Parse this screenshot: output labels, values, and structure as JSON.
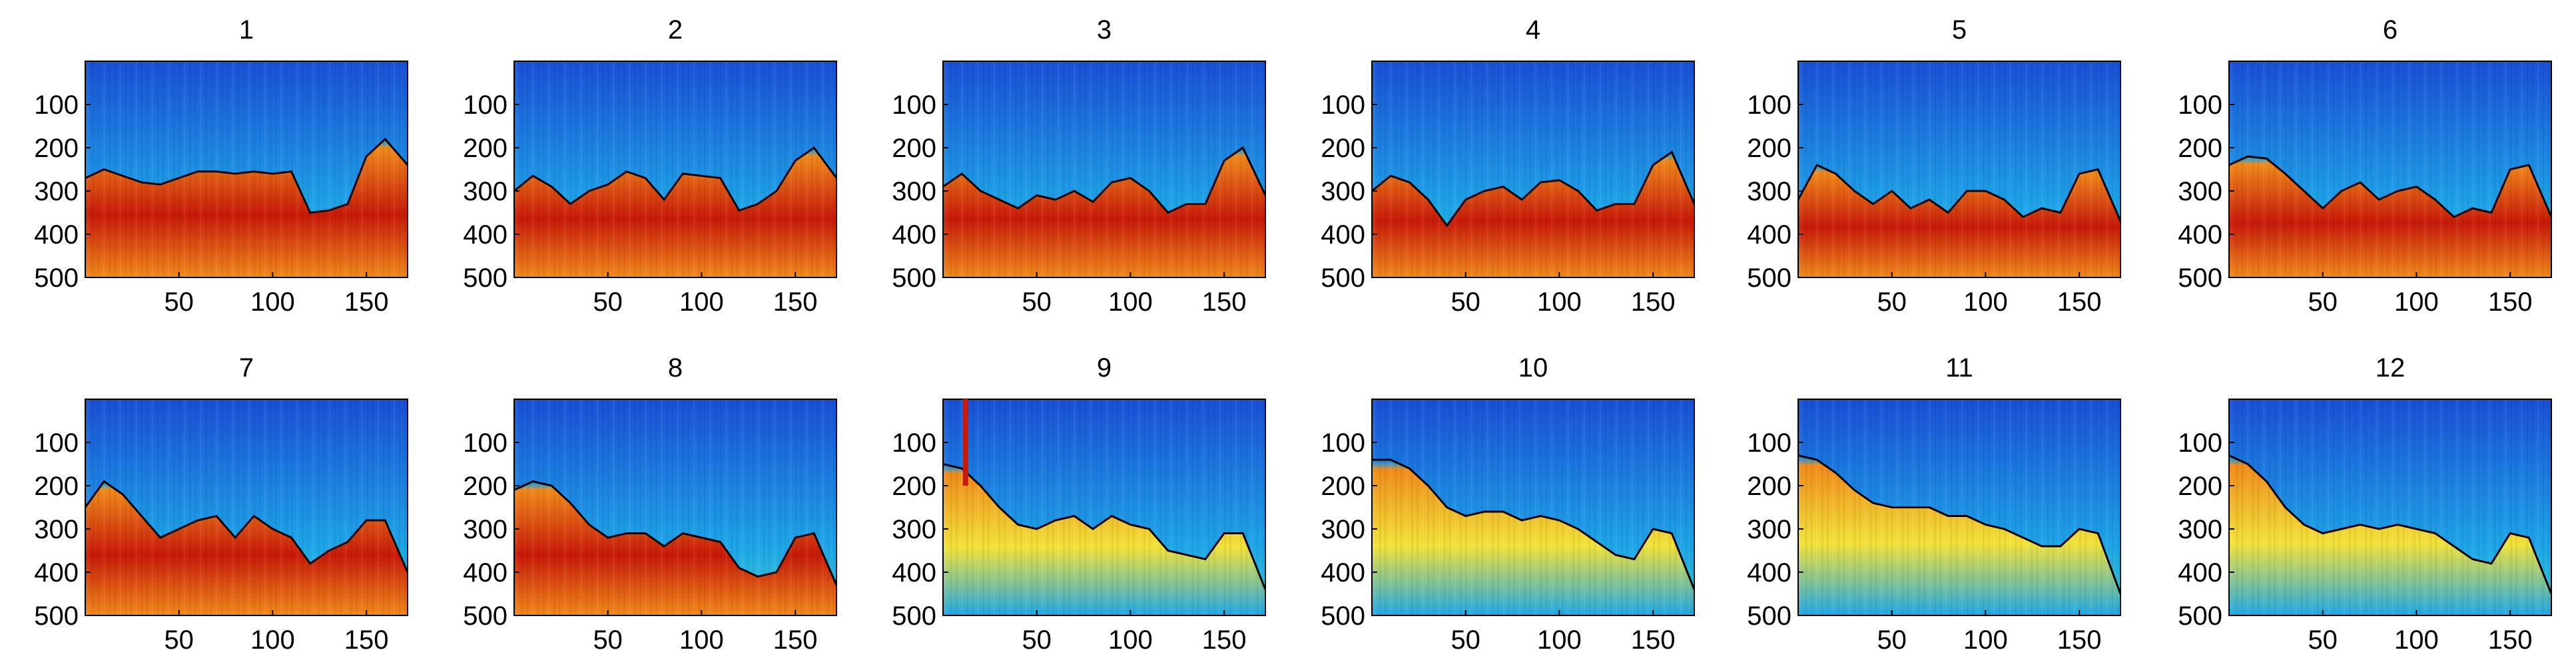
{
  "chart_data": {
    "type": "heatmap",
    "layout": "2 rows x 6 columns of small-multiple panels",
    "colormap": "jet",
    "colors": {
      "low": "#1a4fd6",
      "mid_low": "#1fa8e8",
      "mid": "#3fd0c8",
      "mid_high": "#f2e23a",
      "high": "#f08a1c",
      "peak": "#c81a0a",
      "boundary_line": "#000000"
    },
    "grid": false,
    "y_axis": {
      "reversed": true,
      "lim": [
        0,
        500
      ],
      "ticks": [
        100,
        200,
        300,
        400,
        500
      ]
    },
    "x_axis": {
      "lim": [
        0,
        172
      ],
      "ticks": [
        50,
        100,
        150
      ]
    },
    "boundary_x": [
      0,
      10,
      20,
      30,
      40,
      50,
      60,
      70,
      80,
      90,
      100,
      110,
      120,
      130,
      140,
      150,
      160,
      172
    ],
    "panels": [
      {
        "title": "1",
        "boundary_y": [
          270,
          250,
          265,
          280,
          285,
          270,
          255,
          255,
          260,
          255,
          260,
          255,
          350,
          345,
          330,
          220,
          180,
          240
        ]
      },
      {
        "title": "2",
        "boundary_y": [
          300,
          265,
          290,
          330,
          300,
          285,
          255,
          270,
          320,
          260,
          265,
          270,
          345,
          330,
          300,
          230,
          200,
          270
        ]
      },
      {
        "title": "3",
        "boundary_y": [
          290,
          260,
          300,
          320,
          340,
          310,
          320,
          300,
          325,
          280,
          270,
          300,
          350,
          330,
          330,
          230,
          200,
          310
        ]
      },
      {
        "title": "4",
        "boundary_y": [
          300,
          265,
          280,
          320,
          380,
          320,
          300,
          290,
          320,
          280,
          275,
          300,
          345,
          330,
          330,
          240,
          210,
          330
        ]
      },
      {
        "title": "5",
        "boundary_y": [
          320,
          240,
          260,
          300,
          330,
          300,
          340,
          320,
          350,
          300,
          300,
          320,
          360,
          340,
          350,
          260,
          250,
          370
        ]
      },
      {
        "title": "6",
        "boundary_y": [
          240,
          220,
          225,
          260,
          300,
          340,
          300,
          280,
          320,
          300,
          290,
          320,
          360,
          340,
          350,
          250,
          240,
          360
        ]
      },
      {
        "title": "7",
        "boundary_y": [
          250,
          190,
          220,
          270,
          320,
          300,
          280,
          270,
          320,
          270,
          300,
          320,
          380,
          350,
          330,
          280,
          280,
          400
        ]
      },
      {
        "title": "8",
        "boundary_y": [
          210,
          190,
          200,
          240,
          290,
          320,
          310,
          310,
          340,
          310,
          320,
          330,
          390,
          410,
          400,
          320,
          310,
          430
        ]
      },
      {
        "title": "9",
        "boundary_y": [
          150,
          160,
          200,
          250,
          290,
          300,
          280,
          270,
          300,
          270,
          290,
          300,
          350,
          360,
          370,
          310,
          310,
          440
        ]
      },
      {
        "title": "10",
        "boundary_y": [
          140,
          140,
          160,
          200,
          250,
          270,
          260,
          260,
          280,
          270,
          280,
          300,
          330,
          360,
          370,
          300,
          310,
          440
        ]
      },
      {
        "title": "11",
        "boundary_y": [
          130,
          140,
          170,
          210,
          240,
          250,
          250,
          250,
          270,
          270,
          290,
          300,
          320,
          340,
          340,
          300,
          310,
          450
        ]
      },
      {
        "title": "12",
        "boundary_y": [
          130,
          150,
          190,
          250,
          290,
          310,
          300,
          290,
          300,
          290,
          300,
          310,
          340,
          370,
          380,
          310,
          320,
          450
        ]
      }
    ]
  }
}
